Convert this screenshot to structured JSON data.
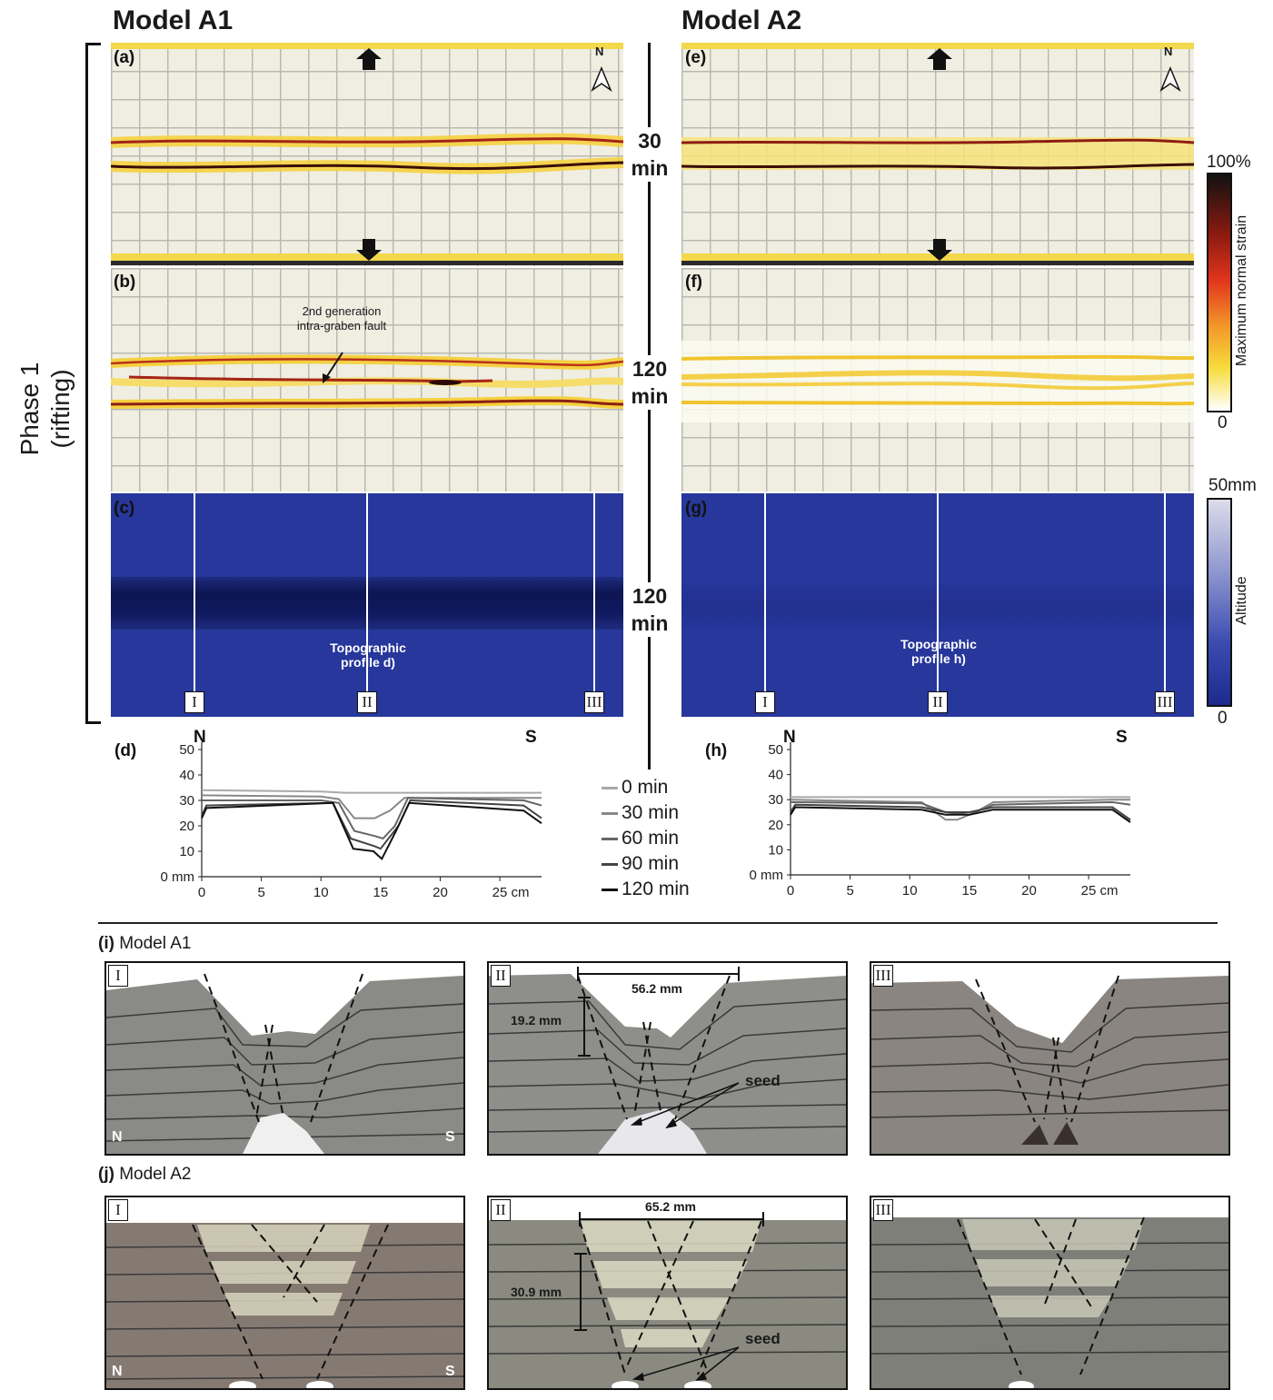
{
  "titles": {
    "a1": "Model A1",
    "a2": "Model A2"
  },
  "phase": {
    "line1": "Phase 1",
    "line2": "(rifting)"
  },
  "panels": {
    "a": "(a)",
    "b": "(b)",
    "c": "(c)",
    "d": "(d)",
    "e": "(e)",
    "f": "(f)",
    "g": "(g)",
    "h": "(h)"
  },
  "north": "N",
  "times": {
    "t1a": "30",
    "t1b": "min",
    "t2a": "120",
    "t2b": "min",
    "t3a": "120",
    "t3b": "min"
  },
  "annotation_b": {
    "line1": "2nd generation",
    "line2": "intra-graben fault"
  },
  "topo_label_c": {
    "line1": "Topographic",
    "line2": "profile d)"
  },
  "topo_label_g": {
    "line1": "Topographic",
    "line2": "profile h)"
  },
  "profiles": [
    "I",
    "II",
    "III"
  ],
  "strain_scale": {
    "top": "100%",
    "bottom": "0",
    "label": "Maximum normal strain"
  },
  "altitude_scale": {
    "top": "50mm",
    "bottom": "0",
    "label": "Altitude"
  },
  "legend": [
    "0 min",
    "30 min",
    "60 min",
    "90 min",
    "120 min"
  ],
  "legend_colors": [
    "#a9a9a9",
    "#888888",
    "#666666",
    "#444444",
    "#111111"
  ],
  "chart_data": [
    {
      "type": "line",
      "panel": "(d)",
      "end_labels": {
        "left": "N",
        "right": "S"
      },
      "x_ticks": [
        "0",
        "5",
        "10",
        "15",
        "20",
        "25 cm"
      ],
      "y_ticks": [
        "0 mm",
        "10",
        "20",
        "30",
        "40",
        "50"
      ],
      "xlim": [
        0,
        28.5
      ],
      "ylim": [
        0,
        50
      ],
      "series": [
        {
          "name": "0 min",
          "x": [
            0,
            10,
            12,
            14,
            16,
            18,
            28.5
          ],
          "y": [
            34,
            33.5,
            33,
            33,
            33,
            33,
            33
          ]
        },
        {
          "name": "30 min",
          "x": [
            0,
            10,
            11.5,
            12.8,
            14.5,
            15.8,
            17,
            27,
            28.5
          ],
          "y": [
            32,
            31.5,
            30.5,
            23,
            23,
            26,
            31,
            31,
            31
          ]
        },
        {
          "name": "60 min",
          "x": [
            0,
            10,
            11.5,
            12.8,
            14.5,
            15.2,
            16.2,
            17.3,
            27,
            28.5
          ],
          "y": [
            30,
            30,
            29,
            18,
            16,
            15,
            20,
            31,
            30,
            28
          ]
        },
        {
          "name": "90 min",
          "x": [
            0,
            0.4,
            11,
            12.5,
            14.5,
            15,
            16.5,
            17.5,
            27,
            28.5
          ],
          "y": [
            24,
            28,
            29,
            15,
            12,
            11,
            20,
            30,
            28,
            23
          ]
        },
        {
          "name": "120 min",
          "x": [
            0,
            0.4,
            11,
            12.7,
            14.4,
            15.1,
            16.3,
            17.4,
            27,
            28.5
          ],
          "y": [
            23,
            27,
            29,
            11,
            10,
            7,
            18,
            29,
            26,
            21
          ]
        }
      ]
    },
    {
      "type": "line",
      "panel": "(h)",
      "end_labels": {
        "left": "N",
        "right": "S"
      },
      "x_ticks": [
        "0",
        "5",
        "10",
        "15",
        "20",
        "25 cm"
      ],
      "y_ticks": [
        "0 mm",
        "10",
        "20",
        "30",
        "40",
        "50"
      ],
      "xlim": [
        0,
        28.5
      ],
      "ylim": [
        0,
        50
      ],
      "series": [
        {
          "name": "0 min",
          "x": [
            0,
            28.5
          ],
          "y": [
            31,
            31
          ]
        },
        {
          "name": "30 min",
          "x": [
            0,
            11,
            13,
            14,
            15.5,
            17,
            27,
            28.5
          ],
          "y": [
            30,
            29,
            22,
            22,
            25,
            29,
            30,
            30
          ]
        },
        {
          "name": "60 min",
          "x": [
            0,
            11,
            13,
            15,
            17,
            27,
            28.5
          ],
          "y": [
            29,
            28.5,
            25,
            24,
            28,
            29,
            28
          ]
        },
        {
          "name": "90 min",
          "x": [
            0,
            0.4,
            11,
            13,
            15,
            17,
            27,
            28.5
          ],
          "y": [
            25,
            28,
            27,
            25,
            25,
            27,
            27,
            22
          ]
        },
        {
          "name": "120 min",
          "x": [
            0,
            0.4,
            11,
            13,
            15,
            17,
            27,
            28.5
          ],
          "y": [
            24,
            27,
            26,
            24,
            24,
            26,
            26,
            21
          ]
        }
      ]
    }
  ],
  "section_i": {
    "label_bold": "(i)",
    "label": "Model A1"
  },
  "section_j": {
    "label_bold": "(j)",
    "label": "Model A2"
  },
  "xsect_corners": {
    "left": "N",
    "right": "S"
  },
  "measures": {
    "i_width": "56.2 mm",
    "i_depth": "19.2 mm",
    "j_width": "65.2 mm",
    "j_depth": "30.9 mm"
  },
  "seed": "seed"
}
